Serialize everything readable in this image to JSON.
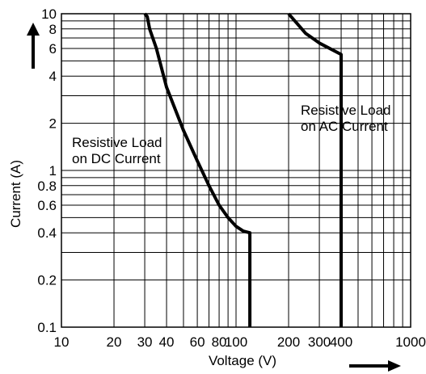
{
  "chart_data": {
    "type": "line",
    "xscale": "log",
    "yscale": "log",
    "xlim": [
      10,
      1000
    ],
    "ylim": [
      0.1,
      10
    ],
    "grid": true,
    "xlabel": "Voltage (V)",
    "ylabel": "Current (A)",
    "x_tick_labels": [
      {
        "value": 10,
        "label": "10"
      },
      {
        "value": 20,
        "label": "20"
      },
      {
        "value": 30,
        "label": "30"
      },
      {
        "value": 40,
        "label": "40"
      },
      {
        "value": 60,
        "label": "60"
      },
      {
        "value": 80,
        "label": "80"
      },
      {
        "value": 100,
        "label": "100"
      },
      {
        "value": 200,
        "label": "200"
      },
      {
        "value": 300,
        "label": "300"
      },
      {
        "value": 400,
        "label": "400"
      },
      {
        "value": 1000,
        "label": "1000"
      }
    ],
    "y_tick_labels": [
      {
        "value": 0.1,
        "label": "0.1"
      },
      {
        "value": 0.2,
        "label": "0.2"
      },
      {
        "value": 0.4,
        "label": "0.4"
      },
      {
        "value": 0.6,
        "label": "0.6"
      },
      {
        "value": 0.8,
        "label": "0.8"
      },
      {
        "value": 1,
        "label": "1"
      },
      {
        "value": 2,
        "label": "2"
      },
      {
        "value": 4,
        "label": "4"
      },
      {
        "value": 6,
        "label": "6"
      },
      {
        "value": 8,
        "label": "8"
      },
      {
        "value": 10,
        "label": "10"
      }
    ],
    "x_grid_values": [
      10,
      20,
      30,
      40,
      50,
      60,
      70,
      80,
      90,
      100,
      200,
      300,
      400,
      500,
      600,
      700,
      800,
      900,
      1000
    ],
    "y_grid_values": [
      0.1,
      0.2,
      0.3,
      0.4,
      0.5,
      0.6,
      0.7,
      0.8,
      0.9,
      1,
      2,
      3,
      4,
      5,
      6,
      7,
      8,
      9,
      10
    ],
    "series": [
      {
        "label_lines": [
          "Resistive Load",
          "on DC Current"
        ],
        "points": [
          [
            30,
            10
          ],
          [
            31,
            9.6
          ],
          [
            32,
            8
          ],
          [
            35,
            6
          ],
          [
            40,
            3.4
          ],
          [
            50,
            1.8
          ],
          [
            60,
            1.15
          ],
          [
            70,
            0.8
          ],
          [
            80,
            0.6
          ],
          [
            90,
            0.5
          ],
          [
            100,
            0.44
          ],
          [
            110,
            0.41
          ],
          [
            120,
            0.4
          ],
          [
            120,
            0.1
          ]
        ]
      },
      {
        "label_lines": [
          "Resistive Load",
          "on AC Current"
        ],
        "points": [
          [
            200,
            10
          ],
          [
            250,
            7.5
          ],
          [
            300,
            6.5
          ],
          [
            400,
            5.5
          ],
          [
            400,
            0.1
          ]
        ]
      }
    ],
    "colors": {
      "line": "#000000",
      "grid": "#000000"
    }
  }
}
